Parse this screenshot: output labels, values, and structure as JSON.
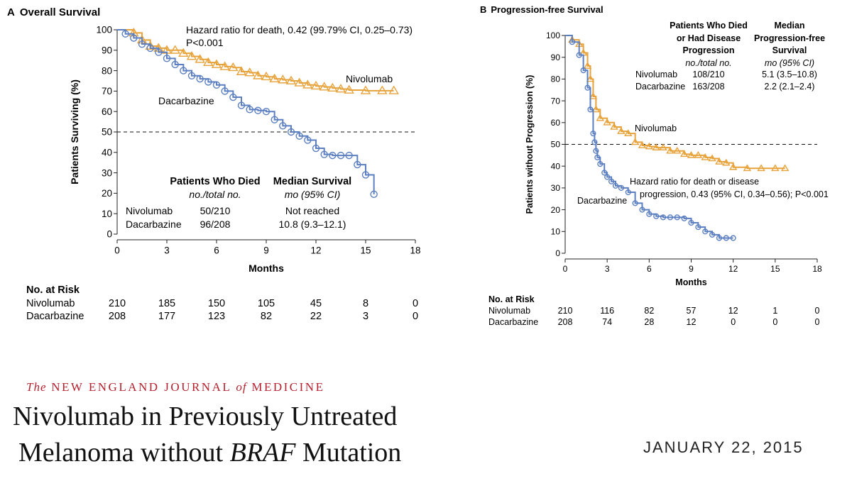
{
  "colors": {
    "nivolumab": "#e8a23a",
    "dacarbazine": "#5b7fc0",
    "journal_red": "#b5202e"
  },
  "chart_data": [
    {
      "type": "line",
      "panel_letter": "A",
      "title": "Overall Survival",
      "xlabel": "Months",
      "ylabel": "Patients Surviving (%)",
      "xlim": [
        0,
        18
      ],
      "ylim": [
        0,
        100
      ],
      "xticks": [
        0,
        3,
        6,
        9,
        12,
        15,
        18
      ],
      "yticks": [
        0,
        10,
        20,
        30,
        40,
        50,
        60,
        70,
        80,
        90,
        100
      ],
      "reference_line_y": 50,
      "series": [
        {
          "name": "Nivolumab",
          "label": "Nivolumab",
          "x": [
            0,
            1,
            1.5,
            2,
            2.5,
            3,
            3.5,
            4,
            4.5,
            5,
            5.5,
            6,
            6.5,
            7,
            7.5,
            8,
            8.5,
            9,
            9.5,
            10,
            10.5,
            11,
            11.5,
            12,
            12.5,
            13,
            13.5,
            14,
            15,
            16,
            16.7
          ],
          "y": [
            100,
            98.5,
            95,
            92,
            91,
            90,
            90,
            88.5,
            87,
            85.5,
            84,
            83,
            82,
            81.5,
            79.5,
            79,
            77.5,
            77,
            76,
            75.5,
            75,
            74,
            73,
            72.5,
            72,
            71.5,
            71,
            70.5,
            70.2,
            70.2,
            70.2
          ]
        },
        {
          "name": "Dacarbazine",
          "label": "Dacarbazine",
          "x": [
            0,
            0.5,
            1,
            1.5,
            2,
            2.5,
            3,
            3.5,
            4,
            4.5,
            5,
            5.5,
            6,
            6.5,
            7,
            7.5,
            8,
            8.5,
            9,
            9.5,
            10,
            10.5,
            11,
            11.5,
            12,
            12.5,
            13,
            13.5,
            14,
            14.5,
            15,
            15.5
          ],
          "y": [
            100,
            98,
            96,
            93,
            91,
            89,
            86,
            83,
            80,
            77.5,
            76,
            74.5,
            73,
            70,
            67,
            63,
            61,
            60.5,
            60,
            56,
            53,
            50,
            48,
            46,
            42,
            39,
            38.5,
            38.5,
            38.5,
            34,
            29,
            19.5
          ]
        }
      ],
      "annotations": [
        "Hazard ratio for death, 0.42 (99.79% CI, 0.25–0.73)",
        "P<0.001"
      ],
      "summary_table": {
        "col1_header": "Patients Who Died",
        "col1_sub": "no./total no.",
        "col2_header": "Median Survival",
        "col2_sub": "mo (95% CI)",
        "rows": [
          {
            "name": "Nivolumab",
            "died": "50/210",
            "median": "Not reached"
          },
          {
            "name": "Dacarbazine",
            "died": "96/208",
            "median": "10.8 (9.3–12.1)"
          }
        ]
      },
      "risk_table": {
        "title": "No. at Risk",
        "rows": [
          {
            "name": "Nivolumab",
            "values": [
              "210",
              "185",
              "150",
              "105",
              "45",
              "8",
              "0"
            ]
          },
          {
            "name": "Dacarbazine",
            "values": [
              "208",
              "177",
              "123",
              "82",
              "22",
              "3",
              "0"
            ]
          }
        ]
      }
    },
    {
      "type": "line",
      "panel_letter": "B",
      "title": "Progression-free Survival",
      "xlabel": "Months",
      "ylabel": "Patients without Progression (%)",
      "xlim": [
        0,
        18
      ],
      "ylim": [
        0,
        100
      ],
      "xticks": [
        0,
        3,
        6,
        9,
        12,
        15,
        18
      ],
      "yticks": [
        0,
        10,
        20,
        30,
        40,
        50,
        60,
        70,
        80,
        90,
        100
      ],
      "reference_line_y": 50,
      "series": [
        {
          "name": "Nivolumab",
          "label": "Nivolumab",
          "x": [
            0,
            0.5,
            1,
            1.3,
            1.6,
            1.8,
            2,
            2.2,
            2.5,
            3,
            3.5,
            4,
            4.5,
            5,
            5.5,
            6,
            6.5,
            7,
            7.5,
            8,
            8.5,
            9,
            9.5,
            10,
            10.5,
            11,
            11.5,
            12,
            13,
            14,
            15,
            15.7
          ],
          "y": [
            100,
            98,
            96,
            92,
            86,
            80,
            72,
            66,
            62,
            60,
            58,
            56,
            55,
            51,
            49.5,
            49,
            48.5,
            48.5,
            47,
            47,
            45.5,
            45,
            45,
            44,
            43.5,
            42,
            41.5,
            39.5,
            39,
            39,
            39,
            39
          ]
        },
        {
          "name": "Dacarbazine",
          "label": "Dacarbazine",
          "x": [
            0,
            0.5,
            1,
            1.3,
            1.6,
            1.8,
            2,
            2.1,
            2.2,
            2.3,
            2.5,
            2.8,
            3,
            3.3,
            3.6,
            4,
            4.5,
            5,
            5.5,
            6,
            6.5,
            7,
            7.5,
            8,
            8.5,
            9,
            9.5,
            10,
            10.5,
            11,
            11.5,
            12
          ],
          "y": [
            100,
            97,
            91,
            84,
            76,
            66,
            55,
            51,
            47,
            44,
            41,
            37,
            35,
            33,
            31,
            30,
            28,
            23,
            20,
            18,
            17,
            16.5,
            16.5,
            16.5,
            16,
            14,
            12,
            10,
            8.5,
            7,
            7,
            7
          ]
        }
      ],
      "annotations": [
        "Hazard ratio for death or disease",
        "progression, 0.43 (95% CI, 0.34–0.56); P<0.001"
      ],
      "summary_table": {
        "col1_header_lines": [
          "Patients Who Died",
          "or Had Disease",
          "Progression"
        ],
        "col1_sub": "no./total no.",
        "col2_header_lines": [
          "Median",
          "Progression-free",
          "Survival"
        ],
        "col2_sub": "mo (95% CI)",
        "rows": [
          {
            "name": "Nivolumab",
            "died": "108/210",
            "median": "5.1 (3.5–10.8)"
          },
          {
            "name": "Dacarbazine",
            "died": "163/208",
            "median": "2.2 (2.1–2.4)"
          }
        ]
      },
      "risk_table": {
        "title": "No. at Risk",
        "rows": [
          {
            "name": "Nivolumab",
            "values": [
              "210",
              "116",
              "82",
              "57",
              "12",
              "1",
              "0"
            ]
          },
          {
            "name": "Dacarbazine",
            "values": [
              "208",
              "74",
              "28",
              "12",
              "0",
              "0",
              "0"
            ]
          }
        ]
      }
    }
  ],
  "footer": {
    "journal_the": "The",
    "journal_mid": "NEW ENGLAND JOURNAL",
    "journal_of": "of",
    "journal_end": "MEDICINE",
    "title_line1": "Nivolumab in Previously Untreated",
    "title_line2_pre": "Melanoma without ",
    "title_line2_em": "BRAF",
    "title_line2_post": " Mutation",
    "date": "JANUARY 22, 2015"
  }
}
